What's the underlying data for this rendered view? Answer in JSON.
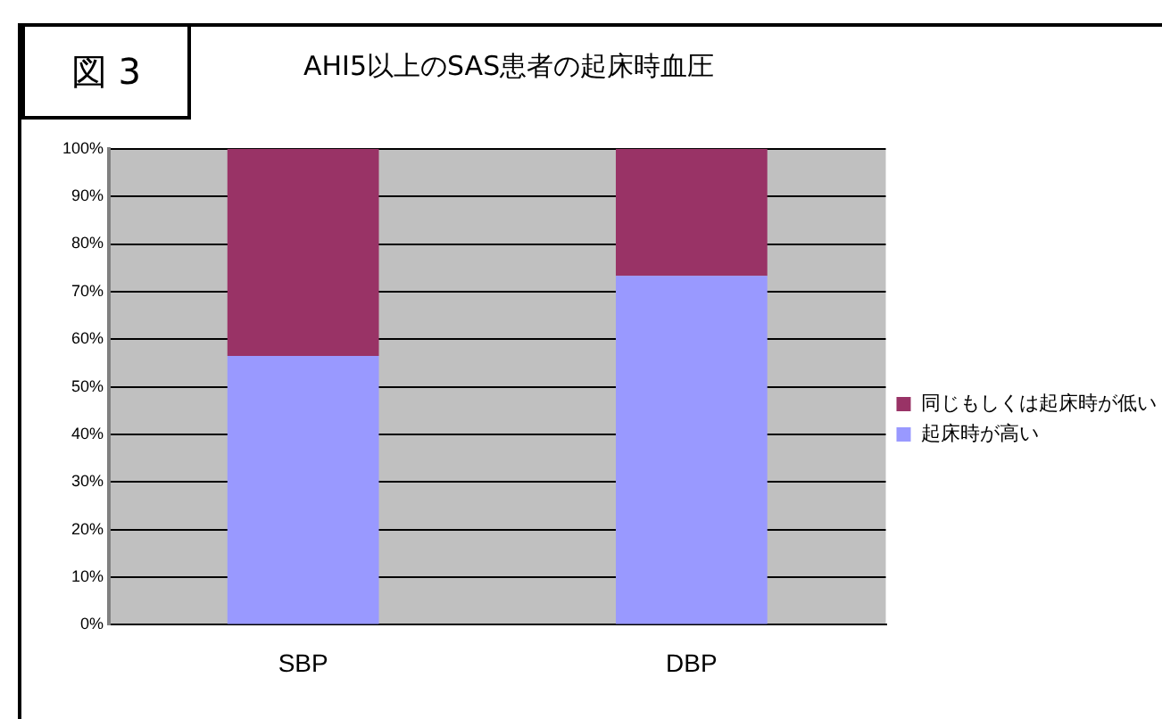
{
  "chart_data": {
    "type": "bar",
    "title": "AHI5以上のSAS患者の起床時血圧",
    "annotations": [
      "図 3"
    ],
    "categories": [
      "SBP",
      "DBP"
    ],
    "stacked": true,
    "series": [
      {
        "name": "起床時が高い",
        "color": "#9999ff",
        "values": [
          56.5,
          73.3
        ]
      },
      {
        "name": "同じもしくは起床時が低い",
        "color": "#993366",
        "values": [
          43.5,
          26.7
        ]
      }
    ],
    "ylim": [
      0,
      100
    ],
    "yticks": [
      {
        "value": 0,
        "label": "0%"
      },
      {
        "value": 10,
        "label": "10%"
      },
      {
        "value": 20,
        "label": "20%"
      },
      {
        "value": 30,
        "label": "30%"
      },
      {
        "value": 40,
        "label": "40%"
      },
      {
        "value": 50,
        "label": "50%"
      },
      {
        "value": 60,
        "label": "60%"
      },
      {
        "value": 70,
        "label": "70%"
      },
      {
        "value": 80,
        "label": "80%"
      },
      {
        "value": 90,
        "label": "90%"
      },
      {
        "value": 100,
        "label": "100%"
      }
    ],
    "grid": "y",
    "legend": "right"
  }
}
